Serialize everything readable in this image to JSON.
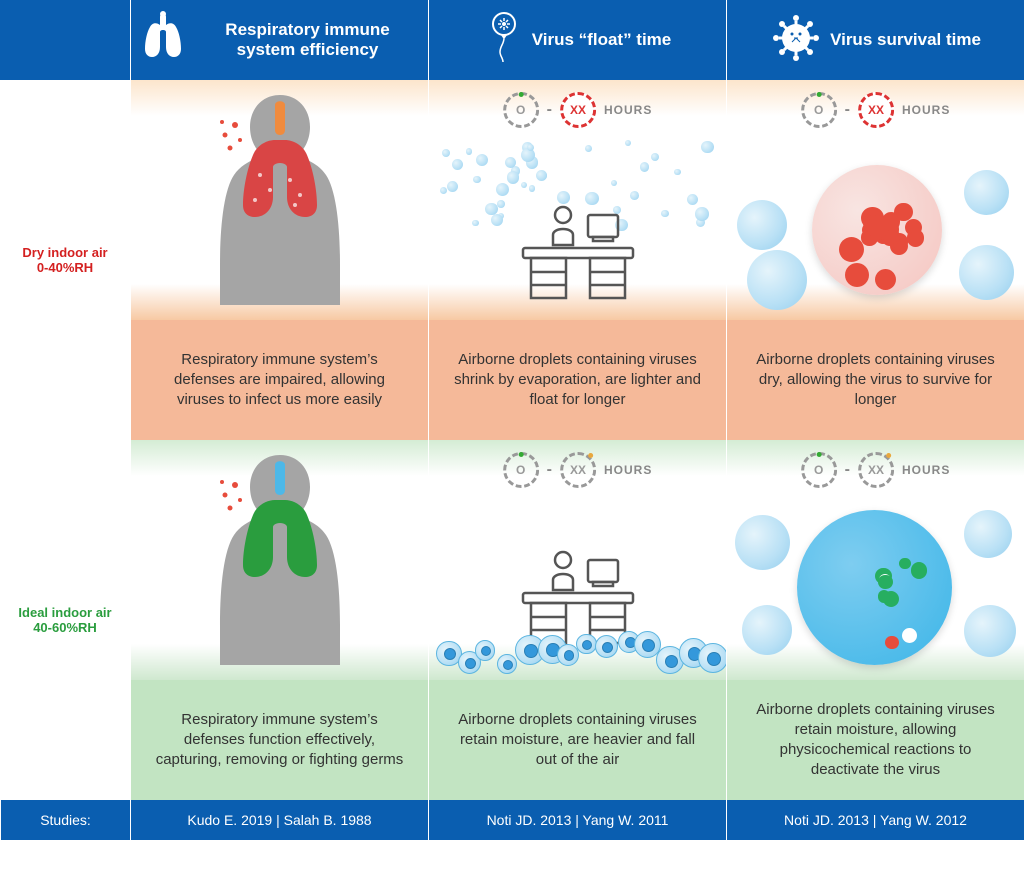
{
  "colors": {
    "blue": "#0a5eb0",
    "dryLabel": "#d42020",
    "idealLabel": "#2a9d3e",
    "dryBand": "#f5b999",
    "idealBand": "#c2e4c2",
    "gray": "#9e9e9e",
    "red": "#d94545",
    "green": "#2a9d3e",
    "lungRed": "#d94545",
    "lungGreen": "#2a9d3e",
    "bodyGray": "#a5a5a5",
    "dropletFill": "#b8e0f5",
    "virusRed": "#e74c3c",
    "virusGreen": "#27ae60",
    "deskStroke": "#555"
  },
  "header": {
    "blank": "",
    "cols": [
      {
        "icon": "lungs",
        "title": "Respiratory immune system efficiency"
      },
      {
        "icon": "balloon",
        "title": "Virus “float” time"
      },
      {
        "icon": "virus",
        "title": "Virus survival time"
      }
    ]
  },
  "rows": {
    "dry": {
      "label1": "Dry indoor air",
      "label2": "0-40%RH",
      "cells": [
        {
          "desc": "Respiratory immune system’s defenses are impaired, allowing viruses to infect us more easily"
        },
        {
          "desc": "Airborne droplets containing viruses shrink by evaporation, are lighter and float for longer"
        },
        {
          "desc": "Airborne droplets containing viruses dry, allowing the virus to survive for longer"
        }
      ]
    },
    "ideal": {
      "label1": "Ideal indoor air",
      "label2": "40-60%RH",
      "cells": [
        {
          "desc": "Respiratory immune system’s defenses function effectively, capturing, removing or fighting germs"
        },
        {
          "desc": "Airborne droplets containing viruses retain moisture, are heavier and fall out of the air"
        },
        {
          "desc": "Airborne droplets containing viruses retain moisture, allowing physicochemical reactions to deactivate the virus"
        }
      ]
    }
  },
  "hours": {
    "left": "O",
    "dash": "-",
    "right": "XX",
    "label": "HOURS"
  },
  "footer": {
    "label": "Studies:",
    "refs": [
      "Kudo E. 2019 | Salah B. 1988",
      "Noti JD. 2013 | Yang W. 2011",
      "Noti JD. 2013 | Yang W. 2012"
    ]
  }
}
